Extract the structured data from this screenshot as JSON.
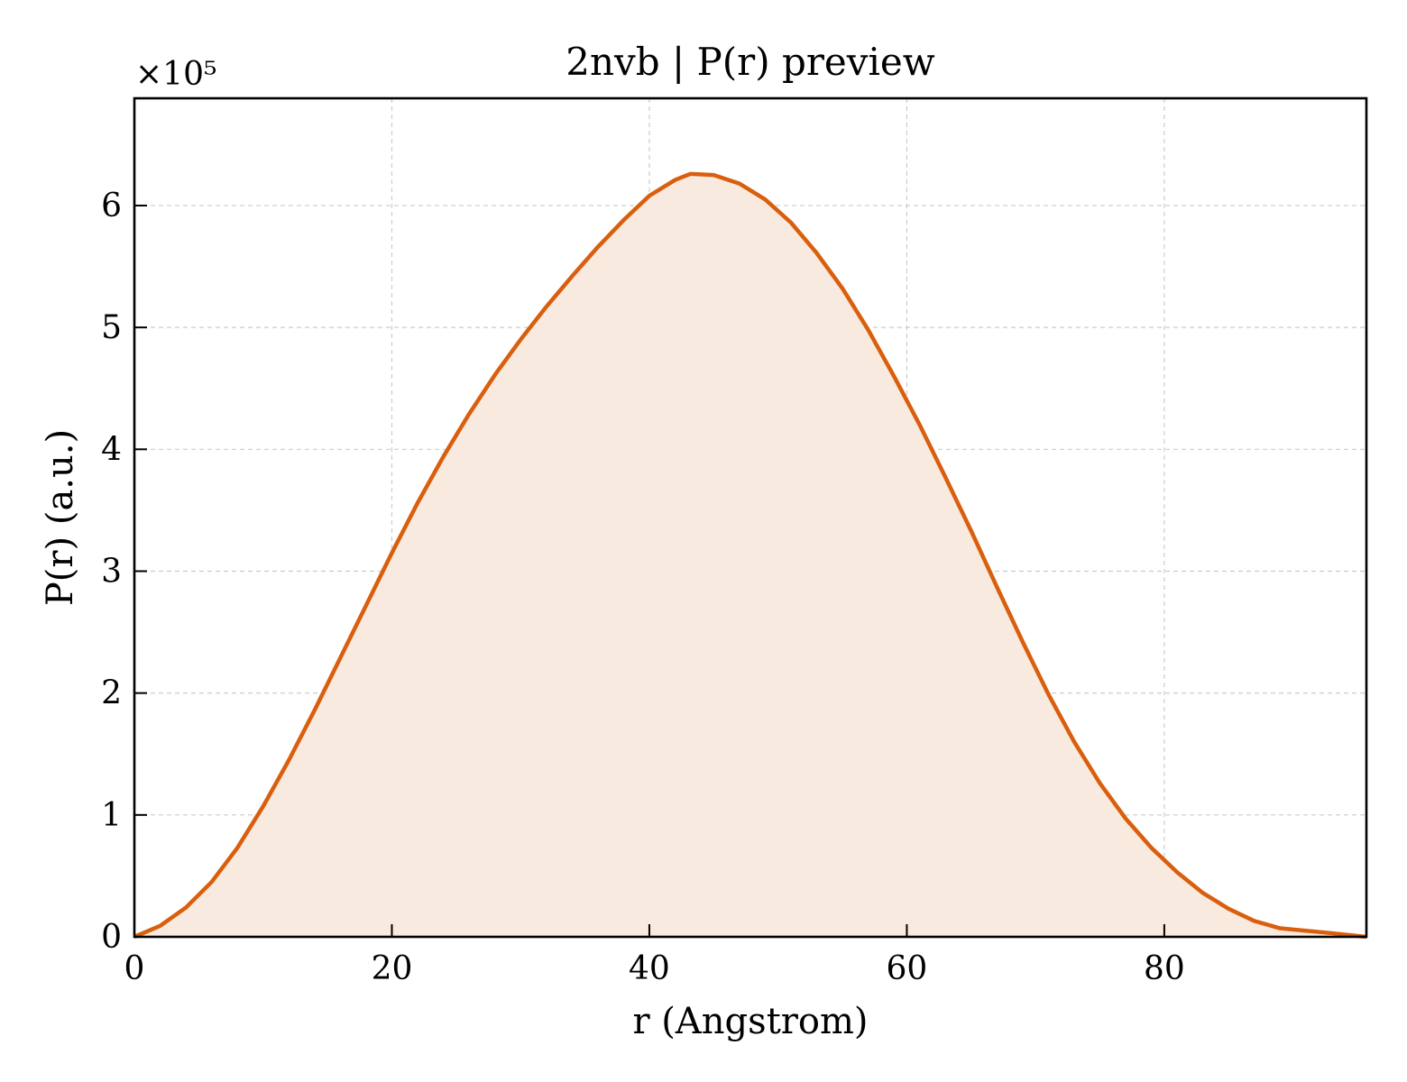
{
  "chart_data": {
    "type": "area",
    "title": "2nvb | P(r) preview",
    "xlabel": "r (Angstrom)",
    "ylabel": "P(r) (a.u.)",
    "y_multiplier_label": "×10⁵",
    "y_scale": 100000,
    "xlim": [
      0,
      95.7
    ],
    "ylim": [
      0,
      6.88
    ],
    "x_ticks": [
      0,
      20,
      40,
      60,
      80
    ],
    "x_tick_labels": [
      "0",
      "20",
      "40",
      "60",
      "80"
    ],
    "y_ticks": [
      0,
      1,
      2,
      3,
      4,
      5,
      6
    ],
    "y_tick_labels": [
      "0",
      "1",
      "2",
      "3",
      "4",
      "5",
      "6"
    ],
    "grid": true,
    "line_color": "#d95f0e",
    "fill_color": "#f8eadf",
    "series": [
      {
        "x": [
          0,
          2,
          4,
          6,
          8,
          10,
          12,
          14,
          16,
          18,
          20,
          22,
          24,
          26,
          28,
          30,
          32,
          34,
          36,
          38,
          40,
          42,
          43.2,
          45,
          47,
          49,
          51,
          53,
          55,
          57,
          59,
          61,
          63,
          65,
          67,
          69,
          71,
          73,
          75,
          77,
          79,
          81,
          83,
          85,
          87,
          89,
          91,
          93,
          95.7
        ],
        "y": [
          0.0,
          0.09,
          0.24,
          0.45,
          0.73,
          1.07,
          1.45,
          1.86,
          2.29,
          2.72,
          3.15,
          3.56,
          3.94,
          4.29,
          4.61,
          4.9,
          5.17,
          5.42,
          5.66,
          5.88,
          6.08,
          6.21,
          6.26,
          6.25,
          6.18,
          6.05,
          5.86,
          5.61,
          5.32,
          4.98,
          4.6,
          4.2,
          3.77,
          3.33,
          2.87,
          2.42,
          1.99,
          1.6,
          1.26,
          0.97,
          0.73,
          0.53,
          0.36,
          0.23,
          0.13,
          0.07,
          0.05,
          0.03,
          0.0
        ]
      }
    ]
  }
}
